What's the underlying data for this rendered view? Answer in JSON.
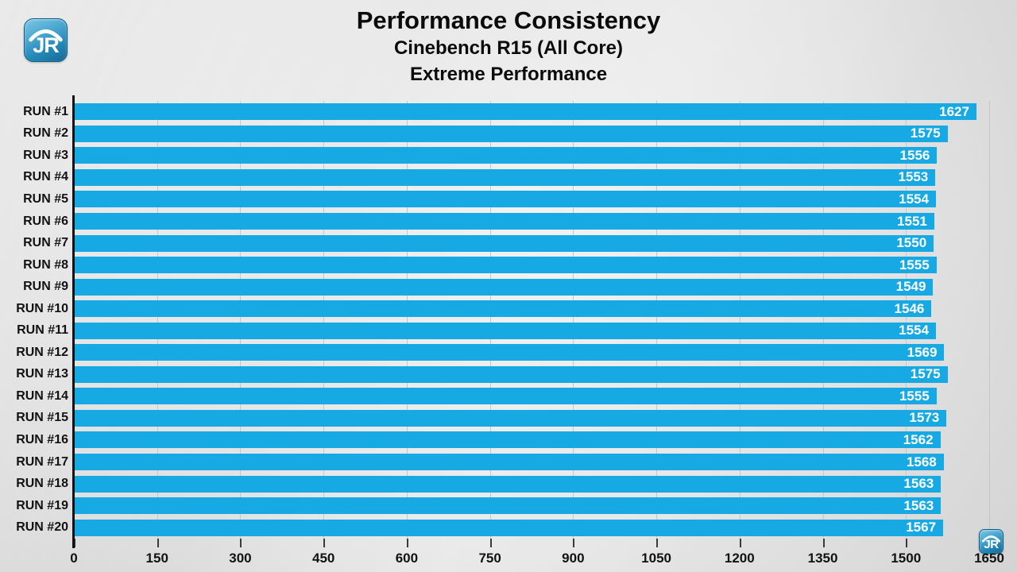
{
  "branding": {
    "logo_text": "JR"
  },
  "header": {
    "title": "Performance Consistency",
    "subtitle_line1": "Cinebench R15 (All Core)",
    "subtitle_line2": "Extreme Performance"
  },
  "chart_data": {
    "type": "bar",
    "orientation": "horizontal",
    "title": "Performance Consistency",
    "subtitle": "Cinebench R15 (All Core) — Extreme Performance",
    "categories": [
      "RUN #1",
      "RUN #2",
      "RUN #3",
      "RUN #4",
      "RUN #5",
      "RUN #6",
      "RUN #7",
      "RUN #8",
      "RUN #9",
      "RUN #10",
      "RUN #11",
      "RUN #12",
      "RUN #13",
      "RUN #14",
      "RUN #15",
      "RUN #16",
      "RUN #17",
      "RUN #18",
      "RUN #19",
      "RUN #20"
    ],
    "values": [
      1627,
      1575,
      1556,
      1553,
      1554,
      1551,
      1550,
      1555,
      1549,
      1546,
      1554,
      1569,
      1575,
      1555,
      1573,
      1562,
      1568,
      1563,
      1563,
      1567
    ],
    "xlabel": "",
    "ylabel": "",
    "xlim": [
      0,
      1650
    ],
    "x_ticks": [
      0,
      150,
      300,
      450,
      600,
      750,
      900,
      1050,
      1200,
      1350,
      1500,
      1650
    ],
    "grid": true,
    "legend_position": "none",
    "bar_color": "#17a9e3",
    "value_label_color": "#ffffff"
  }
}
